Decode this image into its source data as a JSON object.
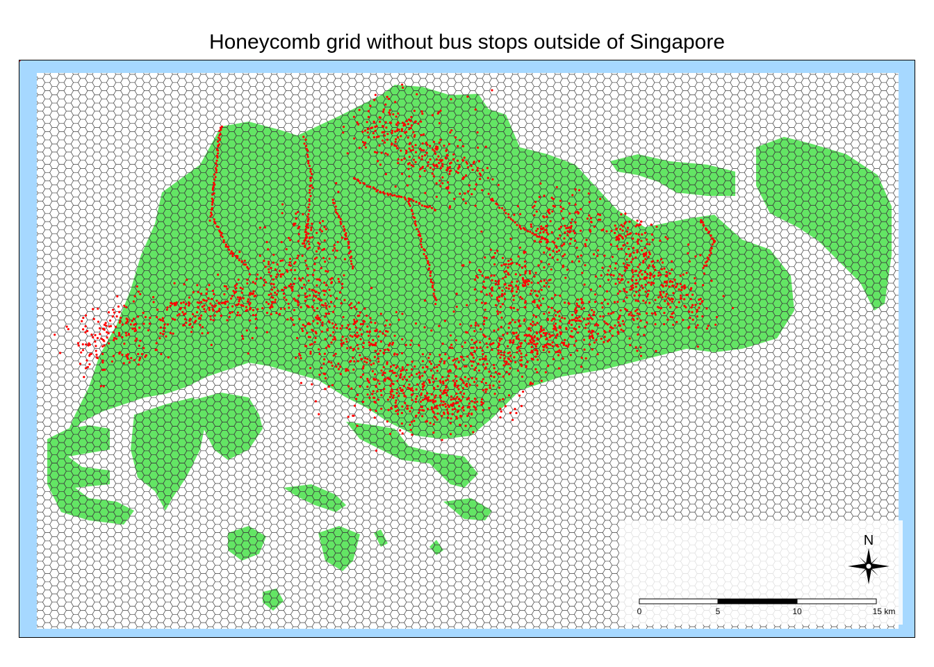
{
  "title": "Honeycomb grid without bus stops outside of Singapore",
  "colors": {
    "sea": "#a6d8ff",
    "land": "#63e564",
    "hex_stroke": "#3c3c3c",
    "bus_stop": "#ff0000",
    "frame": "#000000"
  },
  "layers": [
    {
      "name": "sea",
      "type": "background"
    },
    {
      "name": "honeycomb-grid",
      "type": "hexagon-grid"
    },
    {
      "name": "land",
      "type": "polygon"
    },
    {
      "name": "bus-stops",
      "type": "points"
    }
  ],
  "compass": {
    "label": "N",
    "icon": "compass-rose-icon"
  },
  "scale_bar": {
    "ticks": [
      "0",
      "5",
      "10",
      "15 km"
    ]
  }
}
